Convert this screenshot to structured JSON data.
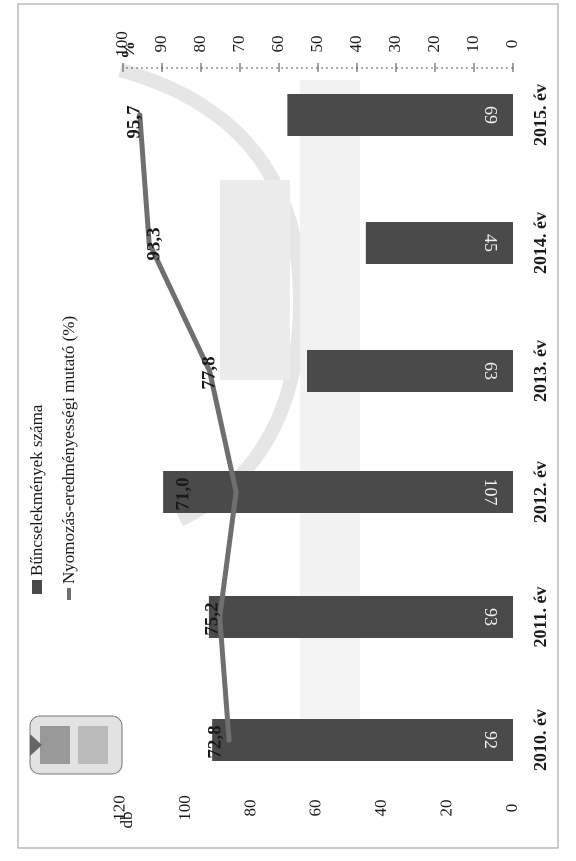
{
  "chart_data": {
    "type": "bar",
    "orientation": "rotated-90",
    "categories": [
      "2010. év",
      "2011. év",
      "2012. év",
      "2013. év",
      "2014. év",
      "2015. év"
    ],
    "series": [
      {
        "name": "Bűncselekmények száma",
        "type": "bar",
        "axis": "left",
        "values": [
          92,
          93,
          107,
          63,
          45,
          69
        ],
        "color": "#4a4a4a"
      },
      {
        "name": "Nyomozás-eredményességi mutató (%)",
        "type": "line",
        "axis": "right",
        "values": [
          72.8,
          75.2,
          71.0,
          77.8,
          93.3,
          95.7
        ],
        "labels": [
          "72,8",
          "75,2",
          "71,0",
          "77,8",
          "93,3",
          "95,7"
        ],
        "color": "#6f6f6f"
      }
    ],
    "left_axis": {
      "unit": "db",
      "range": [
        0,
        120
      ],
      "ticks": [
        "0",
        "20",
        "40",
        "60",
        "80",
        "100",
        "120"
      ]
    },
    "right_axis": {
      "unit": "%",
      "range": [
        0,
        100
      ],
      "ticks": [
        "0",
        "10",
        "20",
        "30",
        "40",
        "50",
        "60",
        "70",
        "80",
        "90",
        "100"
      ]
    },
    "legend_position": "top-left",
    "grid": false
  }
}
